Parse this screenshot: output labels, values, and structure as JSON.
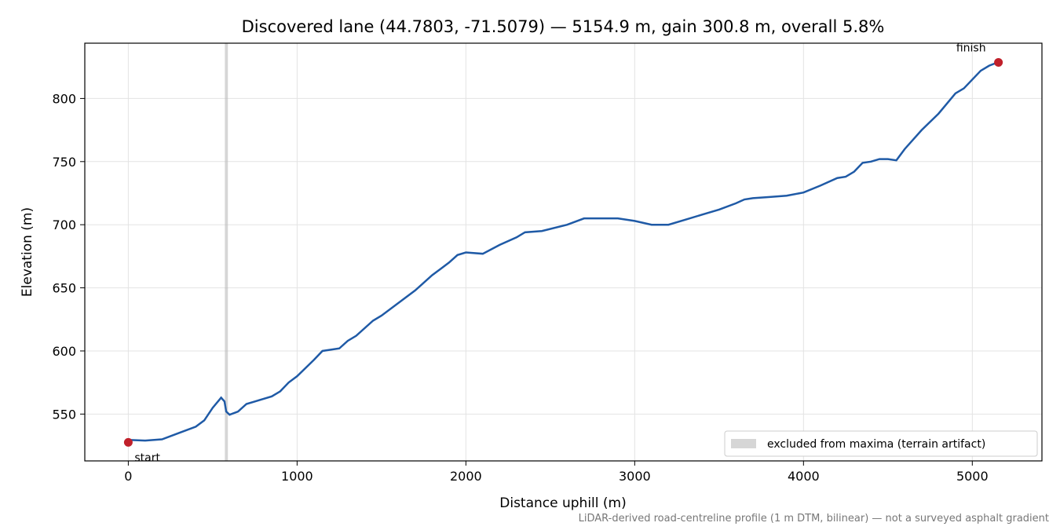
{
  "chart_data": {
    "type": "line",
    "title": "Discovered lane (44.7803, -71.5079) — 5154.9 m, gain 300.8 m, overall 5.8%",
    "xlabel": "Distance uphill (m)",
    "ylabel": "Elevation (m)",
    "footnote": "LiDAR-derived road-centreline profile (1 m DTM, bilinear) — not a surveyed asphalt gradient",
    "x": [
      0,
      100,
      200,
      300,
      400,
      450,
      500,
      550,
      570,
      580,
      600,
      650,
      700,
      750,
      800,
      850,
      900,
      950,
      1000,
      1100,
      1150,
      1250,
      1300,
      1350,
      1450,
      1500,
      1600,
      1700,
      1800,
      1850,
      1900,
      1950,
      2000,
      2100,
      2200,
      2300,
      2350,
      2450,
      2600,
      2700,
      2800,
      2900,
      3000,
      3100,
      3200,
      3300,
      3400,
      3500,
      3600,
      3650,
      3700,
      3800,
      3900,
      4000,
      4100,
      4200,
      4250,
      4300,
      4350,
      4400,
      4450,
      4500,
      4550,
      4600,
      4700,
      4800,
      4900,
      4950,
      5000,
      5050,
      5100,
      5154.9
    ],
    "series": [
      {
        "color": "#1f5aa6",
        "values": [
          529.5,
          529,
          530,
          535,
          540,
          545,
          555,
          563,
          560,
          552,
          549.5,
          552,
          558,
          560,
          562,
          564,
          568,
          575,
          580,
          593,
          600,
          602,
          608,
          612,
          624,
          628,
          638,
          648,
          660,
          665,
          670,
          676,
          678,
          677,
          684,
          690,
          694,
          695,
          700,
          705,
          705,
          705,
          703,
          700,
          700,
          704,
          708,
          712,
          717,
          720,
          721,
          722,
          723,
          725.5,
          731,
          737,
          738,
          742,
          749,
          750,
          752,
          752,
          751,
          760,
          775,
          788,
          804,
          808,
          815,
          822,
          826,
          828.8
        ]
      }
    ],
    "points": [
      {
        "label": "start",
        "x": 0,
        "y": 527.6,
        "color": "#c0202a"
      },
      {
        "label": "finish",
        "x": 5154.9,
        "y": 828.6,
        "color": "#c0202a"
      }
    ],
    "excluded": {
      "label": "excluded from maxima (terrain artifact)",
      "span": [
        572,
        590
      ],
      "color": "#bbbbbb"
    },
    "legend": "lower right",
    "xlim": [
      -257.7,
      5412.6
    ],
    "ylim": [
      512.9,
      843.8
    ],
    "xticks": [
      0,
      1000,
      2000,
      3000,
      4000,
      5000
    ],
    "yticks": [
      550,
      600,
      650,
      700,
      750,
      800
    ],
    "grid": true
  }
}
